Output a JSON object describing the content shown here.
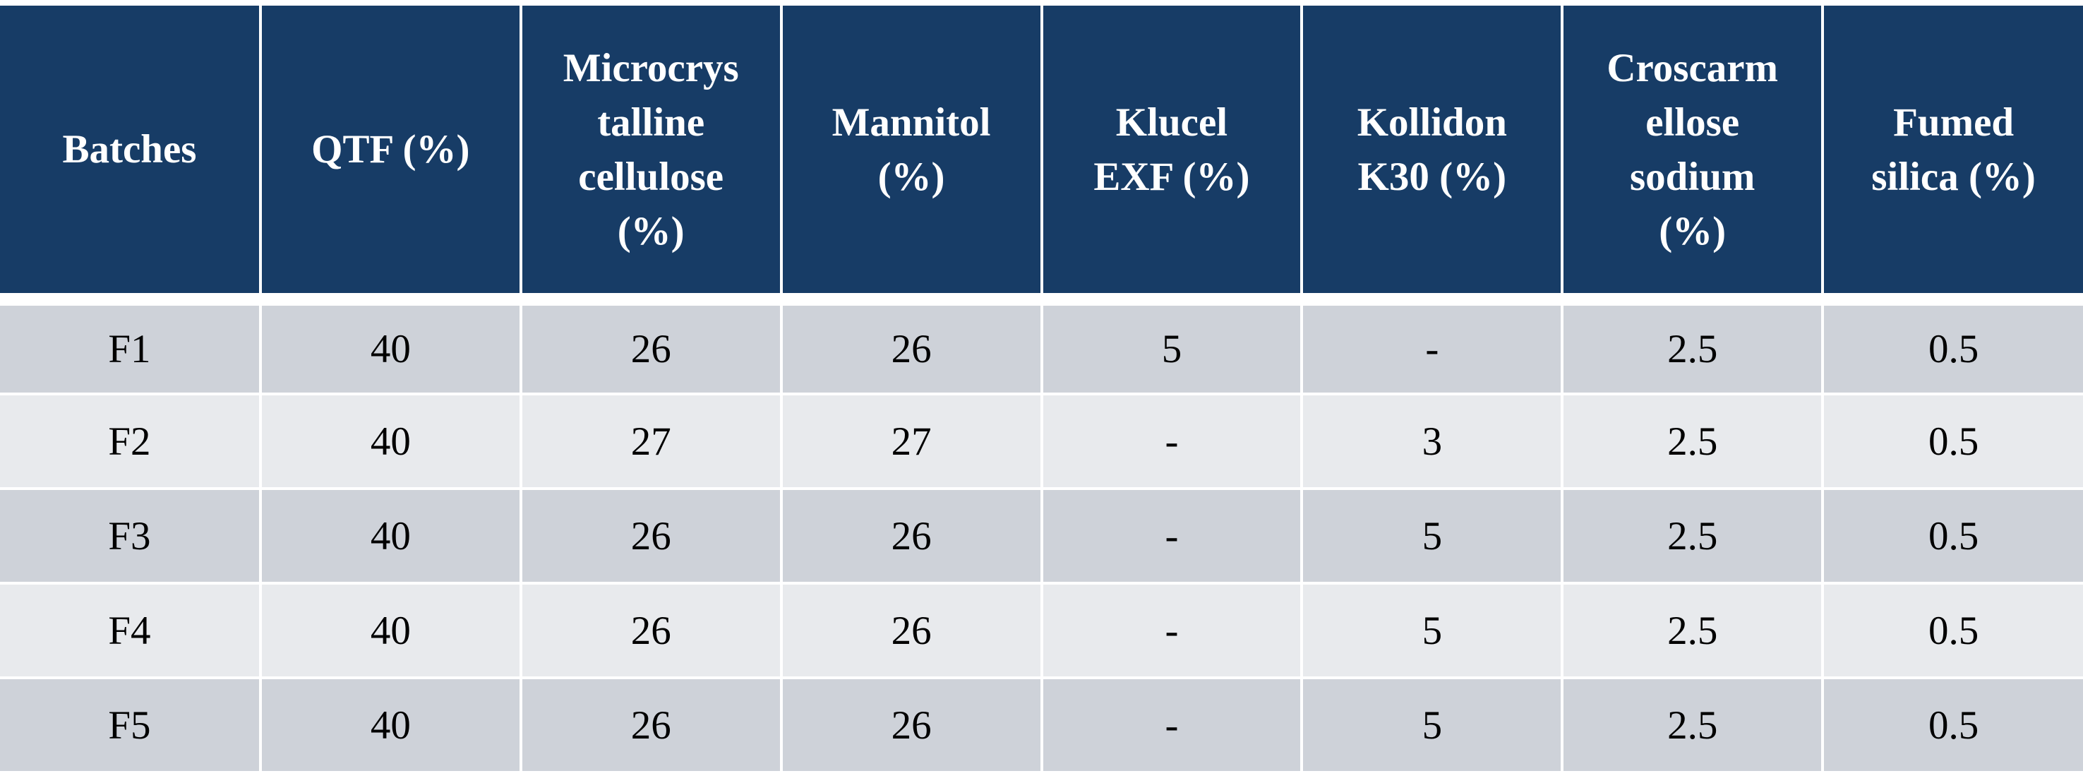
{
  "table": {
    "headers": [
      "Batches",
      "QTF (%)",
      "Microcrys talline cellulose (%)",
      "Mannitol (%)",
      "Klucel EXF (%)",
      "Kollidon K30 (%)",
      "Croscarm ellose sodium (%)",
      "Fumed silica (%)"
    ],
    "header_lines": [
      [
        "Batches"
      ],
      [
        "QTF (%)"
      ],
      [
        "Microcrys",
        "talline",
        "cellulose",
        "(%)"
      ],
      [
        "Mannitol",
        "(%)"
      ],
      [
        "Klucel",
        "EXF (%)"
      ],
      [
        "Kollidon",
        "K30 (%)"
      ],
      [
        "Croscarm",
        "ellose",
        "sodium",
        "(%)"
      ],
      [
        "Fumed",
        "silica (%)"
      ]
    ],
    "rows": [
      [
        "F1",
        "40",
        "26",
        "26",
        "5",
        "-",
        "2.5",
        "0.5"
      ],
      [
        "F2",
        "40",
        "27",
        "27",
        "-",
        "3",
        "2.5",
        "0.5"
      ],
      [
        "F3",
        "40",
        "26",
        "26",
        "-",
        "5",
        "2.5",
        "0.5"
      ],
      [
        "F4",
        "40",
        "26",
        "26",
        "-",
        "5",
        "2.5",
        "0.5"
      ],
      [
        "F5",
        "40",
        "26",
        "26",
        "-",
        "5",
        "2.5",
        "0.5"
      ]
    ]
  },
  "colors": {
    "header_bg": "#173c66",
    "header_text": "#ffffff",
    "row_odd_bg": "#ced2d9",
    "row_even_bg": "#e8eaed",
    "grid_lines": "#ffffff"
  }
}
